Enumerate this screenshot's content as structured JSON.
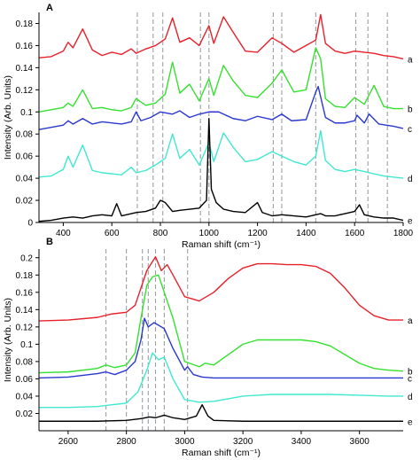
{
  "chart_data": [
    {
      "type": "line",
      "panel": "A",
      "xlabel": "Raman shift (cm⁻¹)",
      "ylabel": "Intensity (Arb. Units)",
      "xlim": [
        300,
        1800
      ],
      "ylim": [
        0,
        0.19
      ],
      "xticks": [
        400,
        600,
        800,
        1000,
        1200,
        1400,
        1600,
        1800
      ],
      "xtick_labels": [
        "400",
        "600",
        "800",
        "1000",
        "1200",
        "1400",
        "1600",
        "1800"
      ],
      "yticks": [
        0,
        0.02,
        0.04,
        0.06,
        0.08,
        0.1,
        0.12,
        0.14,
        0.16,
        0.18
      ],
      "ytick_labels": [
        "0",
        "0.02",
        "0.04",
        "0.06",
        "0.08",
        "0.1",
        "0.12",
        "0.14",
        "0.16",
        "0.18"
      ],
      "reference_lines_x": [
        705,
        770,
        810,
        965,
        1000,
        1265,
        1300,
        1440,
        1605,
        1655,
        1735
      ],
      "series": [
        {
          "name": "a",
          "color": "#e8202a",
          "x": [
            300,
            350,
            400,
            420,
            440,
            480,
            520,
            560,
            600,
            640,
            680,
            700,
            740,
            780,
            820,
            850,
            880,
            920,
            960,
            1000,
            1020,
            1060,
            1100,
            1150,
            1200,
            1260,
            1300,
            1350,
            1400,
            1440,
            1460,
            1480,
            1520,
            1560,
            1600,
            1640,
            1680,
            1720,
            1760,
            1800
          ],
          "y": [
            0.149,
            0.15,
            0.155,
            0.163,
            0.158,
            0.175,
            0.156,
            0.151,
            0.154,
            0.152,
            0.157,
            0.153,
            0.157,
            0.16,
            0.166,
            0.185,
            0.163,
            0.167,
            0.16,
            0.178,
            0.162,
            0.186,
            0.172,
            0.155,
            0.154,
            0.167,
            0.162,
            0.154,
            0.16,
            0.165,
            0.188,
            0.162,
            0.155,
            0.153,
            0.155,
            0.154,
            0.153,
            0.151,
            0.15,
            0.148
          ]
        },
        {
          "name": "b",
          "color": "#36e030",
          "x": [
            300,
            350,
            400,
            420,
            440,
            480,
            520,
            560,
            600,
            640,
            680,
            700,
            740,
            780,
            820,
            850,
            880,
            920,
            960,
            1000,
            1020,
            1060,
            1100,
            1150,
            1200,
            1260,
            1300,
            1350,
            1400,
            1440,
            1460,
            1480,
            1520,
            1560,
            1600,
            1640,
            1680,
            1720,
            1760,
            1800
          ],
          "y": [
            0.1,
            0.102,
            0.104,
            0.108,
            0.105,
            0.12,
            0.103,
            0.104,
            0.102,
            0.101,
            0.104,
            0.112,
            0.106,
            0.108,
            0.116,
            0.145,
            0.117,
            0.125,
            0.11,
            0.13,
            0.115,
            0.142,
            0.128,
            0.115,
            0.113,
            0.126,
            0.138,
            0.118,
            0.12,
            0.158,
            0.148,
            0.112,
            0.105,
            0.104,
            0.113,
            0.107,
            0.124,
            0.105,
            0.103,
            0.103
          ]
        },
        {
          "name": "c",
          "color": "#2a38d0",
          "x": [
            300,
            350,
            400,
            420,
            440,
            480,
            520,
            560,
            600,
            640,
            680,
            700,
            720,
            760,
            800,
            850,
            880,
            920,
            960,
            1000,
            1040,
            1100,
            1150,
            1200,
            1260,
            1300,
            1340,
            1400,
            1440,
            1450,
            1480,
            1520,
            1560,
            1600,
            1610,
            1640,
            1660,
            1700,
            1760,
            1800
          ],
          "y": [
            0.084,
            0.086,
            0.088,
            0.092,
            0.089,
            0.094,
            0.089,
            0.091,
            0.09,
            0.089,
            0.091,
            0.1,
            0.092,
            0.095,
            0.1,
            0.098,
            0.101,
            0.095,
            0.098,
            0.1,
            0.1,
            0.094,
            0.092,
            0.096,
            0.093,
            0.098,
            0.092,
            0.093,
            0.118,
            0.123,
            0.095,
            0.09,
            0.09,
            0.092,
            0.097,
            0.09,
            0.098,
            0.089,
            0.087,
            0.085
          ]
        },
        {
          "name": "d",
          "color": "#40e8d0",
          "x": [
            300,
            350,
            400,
            420,
            440,
            480,
            520,
            560,
            600,
            640,
            680,
            700,
            740,
            780,
            820,
            850,
            880,
            920,
            960,
            1000,
            1020,
            1060,
            1100,
            1150,
            1200,
            1260,
            1300,
            1350,
            1400,
            1440,
            1460,
            1480,
            1520,
            1560,
            1600,
            1640,
            1680,
            1720,
            1760,
            1800
          ],
          "y": [
            0.041,
            0.042,
            0.048,
            0.06,
            0.05,
            0.07,
            0.047,
            0.045,
            0.044,
            0.043,
            0.05,
            0.045,
            0.047,
            0.052,
            0.058,
            0.08,
            0.058,
            0.066,
            0.052,
            0.072,
            0.055,
            0.081,
            0.068,
            0.055,
            0.057,
            0.064,
            0.06,
            0.055,
            0.052,
            0.06,
            0.083,
            0.056,
            0.048,
            0.046,
            0.048,
            0.046,
            0.044,
            0.042,
            0.041,
            0.04
          ]
        },
        {
          "name": "e",
          "color": "#000000",
          "x": [
            300,
            350,
            400,
            440,
            480,
            520,
            560,
            600,
            620,
            640,
            680,
            700,
            740,
            780,
            800,
            820,
            850,
            880,
            920,
            960,
            990,
            1000,
            1010,
            1030,
            1060,
            1100,
            1150,
            1200,
            1220,
            1260,
            1300,
            1350,
            1400,
            1440,
            1460,
            1480,
            1520,
            1560,
            1600,
            1620,
            1640,
            1680,
            1720,
            1760,
            1800
          ],
          "y": [
            0.001,
            0.002,
            0.004,
            0.005,
            0.004,
            0.006,
            0.007,
            0.006,
            0.017,
            0.006,
            0.008,
            0.009,
            0.01,
            0.013,
            0.02,
            0.018,
            0.01,
            0.011,
            0.012,
            0.013,
            0.02,
            0.094,
            0.03,
            0.018,
            0.012,
            0.01,
            0.009,
            0.018,
            0.009,
            0.006,
            0.007,
            0.006,
            0.005,
            0.007,
            0.008,
            0.006,
            0.006,
            0.008,
            0.01,
            0.016,
            0.007,
            0.005,
            0.004,
            0.004,
            0.002
          ]
        }
      ]
    },
    {
      "type": "line",
      "panel": "B",
      "xlabel": "Raman shift (cm⁻¹)",
      "ylabel": "Intensity (Arb. Units)",
      "xlim": [
        2500,
        3750
      ],
      "ylim": [
        0,
        0.21
      ],
      "xticks": [
        2600,
        2800,
        3000,
        3200,
        3400,
        3600
      ],
      "xtick_labels": [
        "2600",
        "2800",
        "3000",
        "3200",
        "3400",
        "3600"
      ],
      "yticks": [
        0.02,
        0.04,
        0.06,
        0.08,
        0.1,
        0.12,
        0.14,
        0.16,
        0.18,
        0.2
      ],
      "ytick_labels": [
        "0.02",
        "0.04",
        "0.06",
        "0.08",
        "0.1",
        "0.12",
        "0.14",
        "0.16",
        "0.18",
        "0.2"
      ],
      "reference_lines_x": [
        2730,
        2800,
        2855,
        2875,
        2900,
        2930,
        3010
      ],
      "series": [
        {
          "name": "a",
          "color": "#e8202a",
          "x": [
            2500,
            2600,
            2700,
            2750,
            2800,
            2830,
            2850,
            2870,
            2900,
            2920,
            2940,
            2960,
            3000,
            3050,
            3100,
            3150,
            3200,
            3250,
            3300,
            3350,
            3400,
            3450,
            3500,
            3550,
            3600,
            3650,
            3700,
            3750
          ],
          "y": [
            0.127,
            0.128,
            0.131,
            0.135,
            0.137,
            0.145,
            0.165,
            0.185,
            0.201,
            0.185,
            0.192,
            0.18,
            0.155,
            0.15,
            0.16,
            0.176,
            0.188,
            0.193,
            0.193,
            0.192,
            0.192,
            0.19,
            0.182,
            0.165,
            0.145,
            0.133,
            0.128,
            0.128
          ]
        },
        {
          "name": "b",
          "color": "#36e030",
          "x": [
            2500,
            2600,
            2700,
            2730,
            2760,
            2800,
            2830,
            2850,
            2870,
            2890,
            2910,
            2930,
            2960,
            3000,
            3050,
            3070,
            3100,
            3150,
            3200,
            3250,
            3300,
            3350,
            3400,
            3450,
            3500,
            3550,
            3600,
            3650,
            3700,
            3750
          ],
          "y": [
            0.067,
            0.068,
            0.072,
            0.076,
            0.073,
            0.076,
            0.09,
            0.13,
            0.168,
            0.178,
            0.18,
            0.16,
            0.13,
            0.08,
            0.074,
            0.078,
            0.076,
            0.088,
            0.1,
            0.105,
            0.105,
            0.105,
            0.105,
            0.103,
            0.098,
            0.088,
            0.078,
            0.072,
            0.07,
            0.069
          ]
        },
        {
          "name": "c",
          "color": "#2a38d0",
          "x": [
            2500,
            2600,
            2700,
            2730,
            2760,
            2800,
            2830,
            2850,
            2862,
            2875,
            2895,
            2910,
            2930,
            2960,
            3000,
            3010,
            3030,
            3060,
            3100,
            3200,
            3300,
            3400,
            3500,
            3600,
            3750
          ],
          "y": [
            0.061,
            0.062,
            0.066,
            0.068,
            0.065,
            0.07,
            0.08,
            0.105,
            0.13,
            0.12,
            0.125,
            0.122,
            0.118,
            0.095,
            0.07,
            0.074,
            0.065,
            0.062,
            0.061,
            0.061,
            0.061,
            0.061,
            0.061,
            0.061,
            0.061
          ]
        },
        {
          "name": "d",
          "color": "#40e8d0",
          "x": [
            2500,
            2600,
            2700,
            2750,
            2800,
            2840,
            2870,
            2890,
            2910,
            2930,
            2960,
            3000,
            3050,
            3100,
            3150,
            3200,
            3250,
            3300,
            3400,
            3500,
            3600,
            3700,
            3750
          ],
          "y": [
            0.027,
            0.027,
            0.028,
            0.03,
            0.032,
            0.045,
            0.07,
            0.09,
            0.082,
            0.085,
            0.06,
            0.036,
            0.033,
            0.034,
            0.037,
            0.04,
            0.041,
            0.042,
            0.042,
            0.042,
            0.041,
            0.04,
            0.04
          ]
        },
        {
          "name": "e",
          "color": "#000000",
          "x": [
            2500,
            2600,
            2700,
            2800,
            2850,
            2880,
            2900,
            2930,
            2960,
            3000,
            3040,
            3060,
            3080,
            3100,
            3200,
            3300,
            3400,
            3500,
            3600,
            3750
          ],
          "y": [
            0.011,
            0.011,
            0.011,
            0.012,
            0.014,
            0.016,
            0.015,
            0.018,
            0.015,
            0.013,
            0.017,
            0.03,
            0.017,
            0.012,
            0.011,
            0.011,
            0.011,
            0.011,
            0.011,
            0.011
          ]
        }
      ]
    }
  ]
}
